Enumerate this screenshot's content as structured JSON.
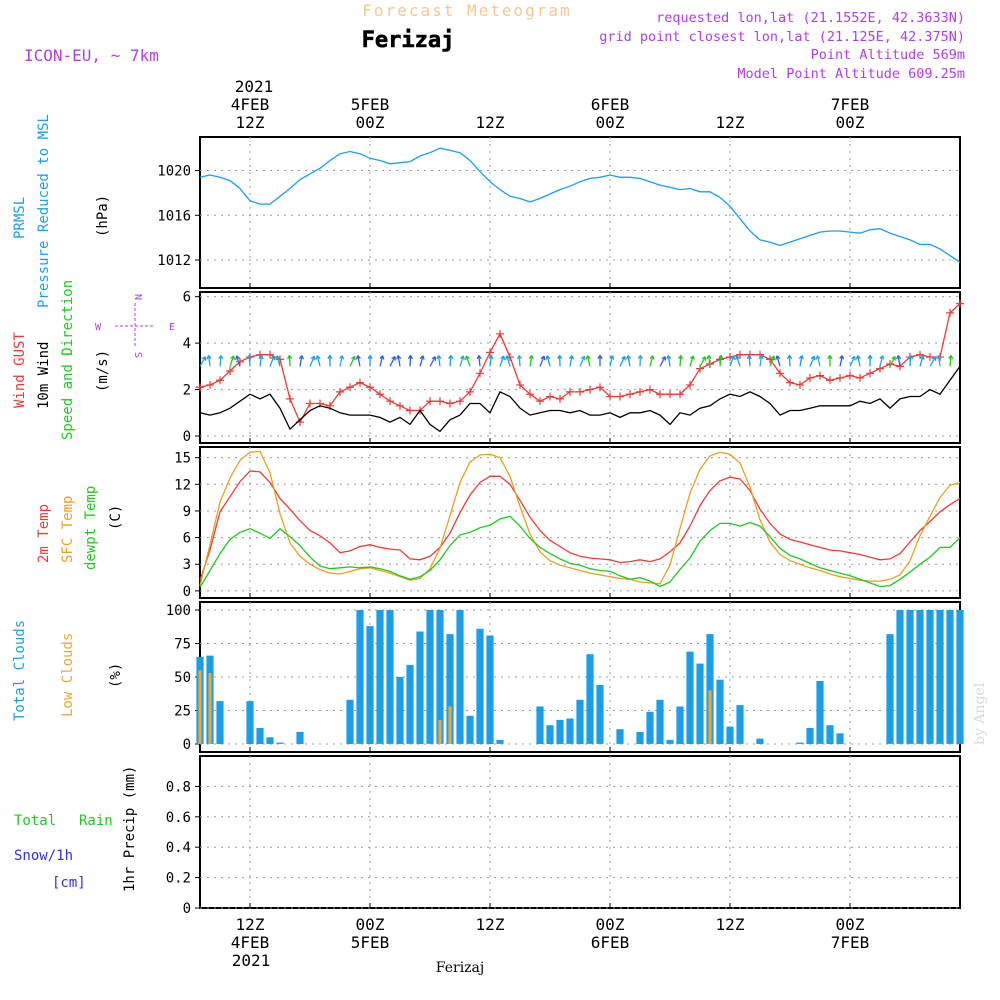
{
  "header": {
    "title": "Forecast Meteogram",
    "location": "Ferizaj",
    "model": "ICON-EU, ~ 7km",
    "requested": "requested lon,lat (21.1552E, 42.3633N)",
    "grid_point": "grid point closest lon,lat (21.125E, 42.375N)",
    "point_altitude": "Point Altitude 569m",
    "model_altitude": "Model Point Altitude 609.25m",
    "watermark": "by Angel",
    "footer_location": "Ferizaj"
  },
  "colors": {
    "pressure": "#1a9ee8",
    "gust": "#e83c3c",
    "wind": "#000000",
    "sfc_temp": "#e8a020",
    "dewpt": "#20c820",
    "total_clouds": "#1a9ee8",
    "low_clouds": "#e8a838",
    "rain": "#20c820",
    "snow": "#3030e0",
    "title_tan": "#f0c890",
    "purple": "#b040e0"
  },
  "time_axis": {
    "top_year": "2021",
    "bottom_year": "2021",
    "ticks": [
      {
        "t": 5,
        "hour": "12Z",
        "date": "4FEB"
      },
      {
        "t": 17,
        "hour": "00Z",
        "date": "5FEB"
      },
      {
        "t": 29,
        "hour": "12Z",
        "date": ""
      },
      {
        "t": 41,
        "hour": "00Z",
        "date": "6FEB"
      },
      {
        "t": 53,
        "hour": "12Z",
        "date": ""
      },
      {
        "t": 65,
        "hour": "00Z",
        "date": "7FEB"
      }
    ],
    "range": [
      0,
      76
    ]
  },
  "chart_data": [
    {
      "type": "line",
      "id": "pressure",
      "labels": [
        "PRMSL",
        "Pressure Reduced to MSL"
      ],
      "unit": "(hPa)",
      "ylim": [
        1009.5,
        1023
      ],
      "yticks": [
        1012,
        1016,
        1020
      ],
      "x": [
        0,
        1,
        2,
        3,
        4,
        5,
        6,
        7,
        8,
        9,
        10,
        11,
        12,
        13,
        14,
        15,
        16,
        17,
        18,
        19,
        20,
        21,
        22,
        23,
        24,
        25,
        26,
        27,
        28,
        29,
        30,
        31,
        32,
        33,
        34,
        35,
        36,
        37,
        38,
        39,
        40,
        41,
        42,
        43,
        44,
        45,
        46,
        47,
        48,
        49,
        50,
        51,
        52,
        53,
        54,
        55,
        56,
        57,
        58,
        59,
        60,
        61,
        62,
        63,
        64,
        65,
        66,
        67,
        68,
        69,
        70,
        71,
        72,
        73,
        74,
        75,
        76
      ],
      "series": [
        {
          "values": [
            1019.4,
            1019.6,
            1019.4,
            1019.1,
            1018.4,
            1017.3,
            1017.0,
            1017.0,
            1017.7,
            1018.4,
            1019.2,
            1019.7,
            1020.2,
            1020.9,
            1021.5,
            1021.7,
            1021.5,
            1021.1,
            1020.9,
            1020.6,
            1020.7,
            1020.8,
            1021.3,
            1021.6,
            1022.0,
            1021.8,
            1021.6,
            1020.9,
            1019.9,
            1019.0,
            1018.3,
            1017.7,
            1017.5,
            1017.2,
            1017.5,
            1017.9,
            1018.3,
            1018.6,
            1019.0,
            1019.3,
            1019.4,
            1019.6,
            1019.4,
            1019.4,
            1019.3,
            1019.0,
            1018.7,
            1018.5,
            1018.3,
            1018.4,
            1018.1,
            1018.1,
            1017.6,
            1016.8,
            1015.7,
            1014.6,
            1013.8,
            1013.6,
            1013.3,
            1013.6,
            1013.9,
            1014.2,
            1014.5,
            1014.6,
            1014.6,
            1014.5,
            1014.4,
            1014.7,
            1014.8,
            1014.4,
            1014.1,
            1013.8,
            1013.4,
            1013.4,
            1013.0,
            1012.4,
            1011.8
          ]
        }
      ]
    },
    {
      "type": "line",
      "id": "wind",
      "labels": [
        "Wind GUST",
        "10m Wind",
        "Speed and Direction"
      ],
      "unit": "(m/s)",
      "compass": {
        "n": "N",
        "s": "S",
        "w": "W",
        "e": "E"
      },
      "ylim": [
        -0.3,
        6.2
      ],
      "yticks": [
        0,
        2,
        4,
        6
      ],
      "x": [
        0,
        1,
        2,
        3,
        4,
        5,
        6,
        7,
        8,
        9,
        10,
        11,
        12,
        13,
        14,
        15,
        16,
        17,
        18,
        19,
        20,
        21,
        22,
        23,
        24,
        25,
        26,
        27,
        28,
        29,
        30,
        31,
        32,
        33,
        34,
        35,
        36,
        37,
        38,
        39,
        40,
        41,
        42,
        43,
        44,
        45,
        46,
        47,
        48,
        49,
        50,
        51,
        52,
        53,
        54,
        55,
        56,
        57,
        58,
        59,
        60,
        61,
        62,
        63,
        64,
        65,
        66,
        67,
        68,
        69,
        70,
        71,
        72,
        73,
        74,
        75,
        76
      ],
      "series": [
        {
          "name": "Wind GUST",
          "values": [
            2.1,
            2.2,
            2.4,
            2.8,
            3.2,
            3.4,
            3.5,
            3.5,
            3.3,
            1.6,
            0.6,
            1.4,
            1.4,
            1.3,
            1.9,
            2.1,
            2.3,
            2.1,
            1.8,
            1.5,
            1.3,
            1.1,
            1.1,
            1.5,
            1.5,
            1.4,
            1.5,
            1.9,
            2.7,
            3.6,
            4.4,
            3.4,
            2.2,
            1.8,
            1.5,
            1.7,
            1.6,
            1.9,
            1.9,
            2.0,
            2.1,
            1.7,
            1.7,
            1.8,
            1.9,
            2.0,
            1.8,
            1.8,
            1.8,
            2.2,
            2.9,
            3.1,
            3.3,
            3.4,
            3.5,
            3.5,
            3.5,
            3.3,
            2.7,
            2.3,
            2.2,
            2.5,
            2.6,
            2.4,
            2.5,
            2.6,
            2.5,
            2.7,
            2.9,
            3.1,
            3.0,
            3.4,
            3.5,
            3.4,
            3.4,
            5.3,
            5.7
          ]
        },
        {
          "name": "10m Wind",
          "values": [
            1.0,
            0.9,
            1.0,
            1.2,
            1.5,
            1.8,
            1.6,
            1.8,
            1.2,
            0.3,
            0.7,
            1.1,
            1.3,
            1.2,
            1.0,
            0.9,
            0.9,
            0.9,
            0.8,
            0.6,
            0.8,
            0.5,
            1.1,
            0.5,
            0.2,
            0.7,
            0.9,
            1.4,
            1.4,
            1.0,
            1.9,
            1.7,
            1.2,
            0.9,
            1.0,
            1.1,
            1.1,
            1.0,
            1.1,
            0.9,
            0.9,
            1.0,
            0.8,
            1.0,
            1.0,
            1.1,
            0.9,
            0.5,
            1.0,
            0.9,
            1.2,
            1.3,
            1.6,
            1.8,
            1.7,
            1.9,
            1.7,
            1.4,
            0.9,
            1.1,
            1.1,
            1.2,
            1.3,
            1.3,
            1.3,
            1.3,
            1.5,
            1.4,
            1.6,
            1.2,
            1.6,
            1.7,
            1.7,
            2.0,
            1.8,
            2.4,
            3.0
          ]
        }
      ]
    },
    {
      "type": "line",
      "id": "temperature",
      "labels": [
        "2m Temp",
        "SFC Temp",
        "dewpt Temp"
      ],
      "unit": "(C)",
      "ylim": [
        -0.8,
        16.2
      ],
      "yticks": [
        0,
        3,
        6,
        9,
        12,
        15
      ],
      "x": [
        0,
        1,
        2,
        3,
        4,
        5,
        6,
        7,
        8,
        9,
        10,
        11,
        12,
        13,
        14,
        15,
        16,
        17,
        18,
        19,
        20,
        21,
        22,
        23,
        24,
        25,
        26,
        27,
        28,
        29,
        30,
        31,
        32,
        33,
        34,
        35,
        36,
        37,
        38,
        39,
        40,
        41,
        42,
        43,
        44,
        45,
        46,
        47,
        48,
        49,
        50,
        51,
        52,
        53,
        54,
        55,
        56,
        57,
        58,
        59,
        60,
        61,
        62,
        63,
        64,
        65,
        66,
        67,
        68,
        69,
        70,
        71,
        72,
        73,
        74,
        75,
        76
      ],
      "series": [
        {
          "name": "2m Temp",
          "values": [
            1.2,
            4.6,
            8.9,
            10.6,
            12.3,
            13.5,
            13.4,
            12.2,
            10.4,
            9.2,
            7.9,
            6.8,
            6.2,
            5.4,
            4.3,
            4.5,
            5.0,
            5.2,
            4.9,
            4.7,
            4.6,
            3.6,
            3.5,
            3.9,
            4.9,
            6.5,
            8.8,
            10.8,
            12.2,
            12.9,
            12.9,
            12.0,
            10.2,
            8.3,
            6.8,
            5.7,
            5.0,
            4.3,
            3.9,
            3.7,
            3.6,
            3.5,
            3.2,
            3.3,
            3.5,
            3.3,
            3.6,
            4.4,
            5.4,
            7.3,
            9.6,
            11.3,
            12.4,
            12.8,
            12.6,
            11.3,
            9.2,
            7.6,
            6.4,
            5.8,
            5.5,
            5.2,
            4.9,
            4.6,
            4.5,
            4.3,
            4.1,
            3.8,
            3.5,
            3.6,
            4.2,
            5.5,
            6.8,
            7.8,
            8.9,
            9.7,
            10.4
          ]
        },
        {
          "name": "SFC Temp",
          "values": [
            0.6,
            5.2,
            10.0,
            12.7,
            14.7,
            15.6,
            15.7,
            13.3,
            8.7,
            5.4,
            3.9,
            3.0,
            2.4,
            2.0,
            1.9,
            2.2,
            2.5,
            2.6,
            2.3,
            2.0,
            1.6,
            1.2,
            1.4,
            2.5,
            4.8,
            8.5,
            12.2,
            14.5,
            15.3,
            15.4,
            15.0,
            12.9,
            9.5,
            6.4,
            4.4,
            3.4,
            2.9,
            2.6,
            2.3,
            2.0,
            1.8,
            1.6,
            1.4,
            1.3,
            1.0,
            0.9,
            0.8,
            2.9,
            7.0,
            11.0,
            13.7,
            15.2,
            15.6,
            15.4,
            14.4,
            11.7,
            8.0,
            5.5,
            4.1,
            3.4,
            3.0,
            2.6,
            2.3,
            1.9,
            1.6,
            1.4,
            1.2,
            1.1,
            1.1,
            1.3,
            1.8,
            3.4,
            6.2,
            8.4,
            10.5,
            11.9,
            12.2
          ]
        },
        {
          "name": "dewpt Temp",
          "values": [
            0.4,
            2.3,
            4.2,
            5.8,
            6.6,
            7.0,
            6.5,
            5.9,
            7.0,
            6.1,
            5.1,
            3.8,
            2.8,
            2.5,
            2.6,
            2.7,
            2.6,
            2.7,
            2.5,
            2.2,
            1.7,
            1.3,
            1.6,
            2.3,
            3.5,
            5.1,
            6.3,
            6.6,
            7.1,
            7.4,
            8.1,
            8.4,
            7.3,
            5.9,
            4.9,
            4.2,
            3.6,
            3.1,
            2.9,
            2.5,
            2.3,
            2.2,
            1.7,
            1.3,
            1.5,
            1.1,
            0.5,
            1.0,
            2.4,
            3.7,
            5.6,
            6.8,
            7.6,
            7.6,
            7.3,
            7.7,
            7.3,
            6.1,
            4.8,
            4.0,
            3.6,
            3.1,
            2.6,
            2.3,
            2.0,
            1.7,
            1.3,
            0.9,
            0.5,
            0.6,
            1.3,
            2.1,
            3.0,
            3.8,
            4.9,
            4.9,
            6.0
          ]
        }
      ]
    },
    {
      "type": "bar",
      "id": "clouds",
      "labels": [
        "Total Clouds",
        "Low Clouds"
      ],
      "unit": "(%)",
      "ylim": [
        -6,
        106
      ],
      "yticks": [
        0,
        25,
        50,
        75,
        100
      ],
      "x": [
        0,
        1,
        2,
        3,
        4,
        5,
        6,
        7,
        8,
        9,
        10,
        11,
        12,
        13,
        14,
        15,
        16,
        17,
        18,
        19,
        20,
        21,
        22,
        23,
        24,
        25,
        26,
        27,
        28,
        29,
        30,
        31,
        32,
        33,
        34,
        35,
        36,
        37,
        38,
        39,
        40,
        41,
        42,
        43,
        44,
        45,
        46,
        47,
        48,
        49,
        50,
        51,
        52,
        53,
        54,
        55,
        56,
        57,
        58,
        59,
        60,
        61,
        62,
        63,
        64,
        65,
        66,
        67,
        68,
        69,
        70,
        71,
        72,
        73,
        74,
        75,
        76
      ],
      "series": [
        {
          "name": "Total Clouds",
          "values": [
            65,
            66,
            32,
            0,
            0,
            32,
            12,
            5,
            1,
            0,
            9,
            0,
            0,
            0,
            0,
            33,
            100,
            88,
            100,
            100,
            50,
            59,
            84,
            100,
            100,
            82,
            100,
            21,
            86,
            81,
            3,
            0,
            0,
            0,
            28,
            14,
            18,
            19,
            33,
            67,
            44,
            0,
            11,
            0,
            9,
            24,
            33,
            3,
            28,
            69,
            60,
            82,
            48,
            13,
            29,
            0,
            4,
            0,
            0,
            0,
            1,
            12,
            47,
            14,
            8,
            0,
            0,
            0,
            0,
            82,
            100,
            100,
            100,
            100,
            100,
            100,
            100
          ]
        },
        {
          "name": "Low Clouds",
          "values": [
            55,
            53,
            0,
            0,
            0,
            0,
            0,
            0,
            0,
            0,
            0,
            0,
            0,
            0,
            0,
            0,
            0,
            0,
            0,
            0,
            0,
            0,
            0,
            0,
            18,
            28,
            0,
            0,
            0,
            0,
            0,
            0,
            0,
            0,
            0,
            0,
            0,
            0,
            0,
            0,
            0,
            0,
            0,
            0,
            0,
            0,
            0,
            0,
            0,
            0,
            0,
            40,
            0,
            0,
            0,
            0,
            0,
            0,
            0,
            0,
            0,
            0,
            0,
            0,
            0,
            0,
            0,
            0,
            0,
            0,
            0,
            0,
            0,
            0,
            0,
            0,
            0
          ]
        }
      ]
    },
    {
      "type": "bar",
      "id": "precip",
      "labels": [
        "Total",
        "Rain",
        "Snow/1h",
        "[cm]"
      ],
      "ylabel": "1hr Precip (mm)",
      "ylim": [
        0,
        1
      ],
      "yticks": [
        0,
        0.2,
        0.4,
        0.6,
        0.8
      ],
      "series": []
    }
  ]
}
